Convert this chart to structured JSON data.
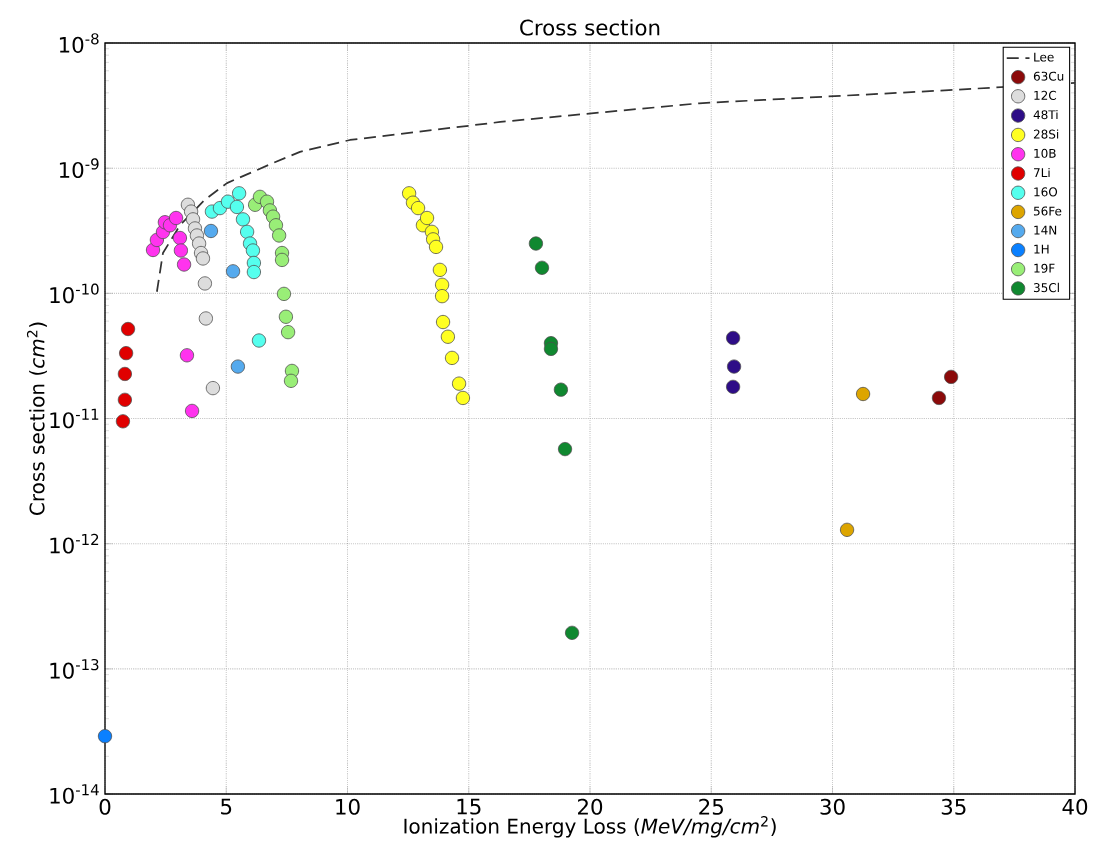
{
  "chart_data": {
    "type": "scatter",
    "title": "Cross section",
    "xlabel": "Ionization Energy Loss (*MeV/mg/cm*$^{2}$)",
    "ylabel": "Cross section (*cm*$^{2}$)",
    "xlim": [
      0,
      40
    ],
    "xticks": [
      0,
      5,
      10,
      15,
      20,
      25,
      30,
      35,
      40
    ],
    "ylim": [
      1e-14,
      1e-08
    ],
    "yticks": [
      {
        "value": 1e-14,
        "label": "10$^{-14}$"
      },
      {
        "value": 1e-13,
        "label": "10$^{-13}$"
      },
      {
        "value": 1e-12,
        "label": "10$^{-12}$"
      },
      {
        "value": 1e-11,
        "label": "10$^{-11}$"
      },
      {
        "value": 1e-10,
        "label": "10$^{-10}$"
      },
      {
        "value": 1e-09,
        "label": "10$^{-9}$"
      },
      {
        "value": 1e-08,
        "label": "10$^{-8}$"
      }
    ],
    "log": "y",
    "grid": true,
    "legend": "top right",
    "marker": "circle",
    "series": [
      {
        "name": "Lee",
        "type": "line",
        "marker": "none",
        "line_style": "dashed",
        "color": "#333333",
        "x": [
          2.14,
          2.39,
          3.09,
          4.12,
          5.03,
          6.93,
          8.04,
          10.1,
          16.3,
          24.5,
          34.8,
          40
        ],
        "values": [
          1.03e-10,
          2.1e-10,
          3.5e-10,
          5.6e-10,
          7.6e-10,
          1.1e-09,
          1.35e-09,
          1.68e-09,
          2.34e-09,
          3.3e-09,
          4.2e-09,
          4.8e-09
        ]
      },
      {
        "name": "63Cu",
        "color": "#8b0a0a",
        "x": [
          34.39,
          34.89
        ],
        "values": [
          1.46e-11,
          2.15e-11
        ]
      },
      {
        "name": "12C",
        "color": "#dddddd",
        "x": [
          3.42,
          3.55,
          3.63,
          3.71,
          3.79,
          3.88,
          3.96,
          4.04,
          4.12,
          4.16,
          4.45
        ],
        "values": [
          5.1e-10,
          4.5e-10,
          3.9e-10,
          3.3e-10,
          2.9e-10,
          2.5e-10,
          2.1e-10,
          1.9e-10,
          1.2e-10,
          6.3e-11,
          1.75e-11
        ]
      },
      {
        "name": "48Ti",
        "color": "#2e0d87",
        "x": [
          25.9,
          25.94,
          25.9
        ],
        "values": [
          4.4e-11,
          2.6e-11,
          1.79e-11
        ]
      },
      {
        "name": "28Si",
        "color": "#ffff22",
        "x": [
          12.54,
          12.7,
          12.91,
          13.07,
          13.11,
          13.28,
          13.48,
          13.53,
          13.65,
          13.81,
          13.9,
          13.9,
          13.94,
          14.14,
          14.31,
          14.6,
          14.76
        ],
        "values": [
          6.3e-10,
          5.3e-10,
          4.8e-10,
          null,
          3.5e-10,
          4e-10,
          3.1e-10,
          2.7e-10,
          2.35e-10,
          1.54e-10,
          1.17e-10,
          9.5e-11,
          5.9e-11,
          4.5e-11,
          3.05e-11,
          1.9e-11,
          1.46e-11
        ]
      },
      {
        "name": "10B",
        "color": "#ff33ee",
        "x": [
          1.98,
          2.14,
          2.39,
          2.47,
          2.68,
          2.93,
          3.09,
          3.13,
          3.26,
          3.38,
          3.59
        ],
        "values": [
          2.22e-10,
          2.67e-10,
          3.09e-10,
          3.7e-10,
          3.5e-10,
          4e-10,
          2.77e-10,
          2.2e-10,
          1.7e-10,
          3.2e-11,
          1.15e-11
        ]
      },
      {
        "name": "7Li",
        "color": "#e00000",
        "x": [
          0.95,
          0.87,
          0.82,
          0.82,
          0.74
        ],
        "values": [
          5.19e-11,
          3.33e-11,
          2.27e-11,
          1.41e-11,
          9.5e-12
        ]
      },
      {
        "name": "16O",
        "color": "#55ffee",
        "x": [
          4.41,
          4.74,
          5.07,
          5.28,
          5.53,
          5.44,
          5.69,
          5.86,
          5.98,
          6.1,
          6.14,
          6.14,
          6.35
        ],
        "values": [
          4.5e-10,
          4.8e-10,
          5.4e-10,
          null,
          6.3e-10,
          4.9e-10,
          3.9e-10,
          3.1e-10,
          2.5e-10,
          2.2e-10,
          1.75e-10,
          1.48e-10,
          4.2e-11
        ]
      },
      {
        "name": "56Fe",
        "color": "#dda500",
        "x": [
          31.26,
          30.6
        ],
        "values": [
          1.57e-11,
          1.29e-12
        ]
      },
      {
        "name": "14N",
        "color": "#55aaee",
        "x": [
          4.37,
          5.28,
          5.48
        ],
        "values": [
          3.15e-10,
          1.5e-10,
          2.6e-11
        ]
      },
      {
        "name": "1H",
        "color": "#0a80ff",
        "x": [
          0.0
        ],
        "values": [
          2.9e-14
        ]
      },
      {
        "name": "19F",
        "color": "#99ee77",
        "x": [
          6.19,
          6.39,
          6.68,
          6.8,
          6.93,
          7.05,
          7.18,
          7.3,
          7.3,
          7.38,
          7.46,
          7.55,
          7.71,
          7.67
        ],
        "values": [
          5.1e-10,
          5.9e-10,
          5.4e-10,
          4.6e-10,
          4.1e-10,
          3.5e-10,
          2.9e-10,
          2.1e-10,
          1.85e-10,
          9.9e-11,
          6.5e-11,
          4.9e-11,
          2.4e-11,
          2e-11
        ]
      },
      {
        "name": "35Cl",
        "color": "#108830",
        "x": [
          17.77,
          18.02,
          18.39,
          18.39,
          18.8,
          18.97,
          19.26
        ],
        "values": [
          2.5e-10,
          1.6e-10,
          4e-11,
          3.6e-11,
          1.7e-11,
          5.7e-12,
          1.94e-13
        ]
      }
    ]
  }
}
